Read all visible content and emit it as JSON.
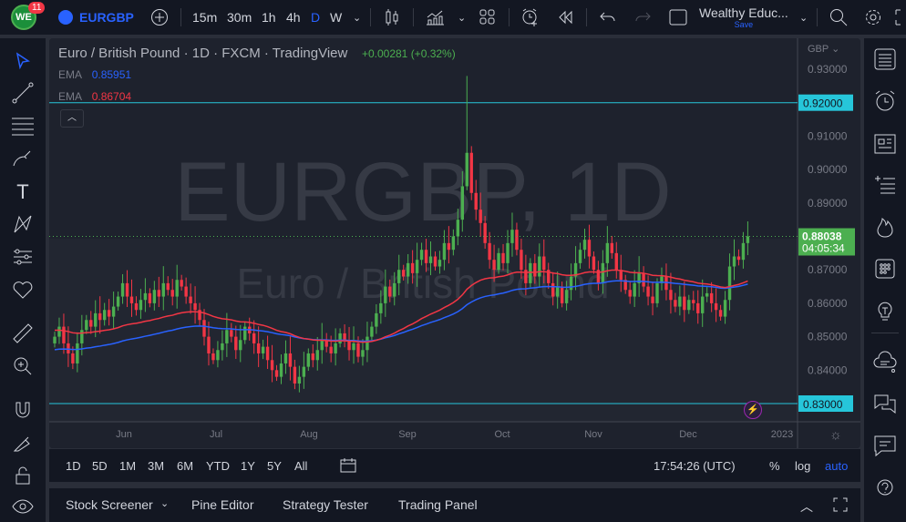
{
  "toolbar": {
    "notifications": "11",
    "symbol": "EURGBP",
    "intervals": [
      "15m",
      "30m",
      "1h",
      "4h",
      "D",
      "W"
    ],
    "active_interval": "D",
    "layout_name": "Wealthy Educ...",
    "save_label": "Save"
  },
  "legend": {
    "title": "Euro / British Pound · 1D · FXCM · TradingView",
    "change": "+0.00281 (+0.32%)",
    "ema1_label": "EMA",
    "ema1_value": "0.85951",
    "ema2_label": "EMA",
    "ema2_value": "0.86704"
  },
  "watermark": {
    "symbol": "EURGBP, 1D",
    "name": "Euro / British Pound"
  },
  "colors": {
    "up": "#4caf50",
    "down": "#f23645",
    "ema_blue": "#2962ff",
    "ema_red": "#f23645",
    "line": "#26c6da",
    "accent": "#2962ff"
  },
  "chart_data": {
    "type": "candlestick",
    "currency": "GBP",
    "y_ticks": [
      "0.93000",
      "0.91000",
      "0.90000",
      "0.89000",
      "0.87000",
      "0.86000",
      "0.85000",
      "0.84000"
    ],
    "ylim": [
      0.83,
      0.93
    ],
    "x_ticks": [
      "Jun",
      "Jul",
      "Aug",
      "Sep",
      "Oct",
      "Nov",
      "Dec",
      "2023"
    ],
    "horizontal_lines": [
      {
        "value": "0.92000"
      },
      {
        "value": "0.83000"
      }
    ],
    "last_price": "0.88038",
    "countdown": "04:05:34",
    "closes": [
      0.85,
      0.853,
      0.848,
      0.845,
      0.842,
      0.848,
      0.852,
      0.855,
      0.853,
      0.857,
      0.855,
      0.858,
      0.856,
      0.859,
      0.862,
      0.866,
      0.862,
      0.86,
      0.858,
      0.861,
      0.863,
      0.86,
      0.864,
      0.862,
      0.866,
      0.864,
      0.862,
      0.867,
      0.865,
      0.862,
      0.86,
      0.858,
      0.855,
      0.85,
      0.845,
      0.843,
      0.846,
      0.848,
      0.852,
      0.85,
      0.846,
      0.849,
      0.853,
      0.851,
      0.848,
      0.845,
      0.847,
      0.843,
      0.84,
      0.838,
      0.842,
      0.845,
      0.841,
      0.836,
      0.838,
      0.841,
      0.845,
      0.843,
      0.846,
      0.849,
      0.847,
      0.845,
      0.848,
      0.851,
      0.849,
      0.846,
      0.848,
      0.844,
      0.846,
      0.85,
      0.853,
      0.857,
      0.86,
      0.865,
      0.862,
      0.866,
      0.87,
      0.868,
      0.872,
      0.869,
      0.873,
      0.876,
      0.872,
      0.874,
      0.871,
      0.873,
      0.878,
      0.876,
      0.88,
      0.885,
      0.895,
      0.905,
      0.893,
      0.888,
      0.884,
      0.878,
      0.873,
      0.87,
      0.875,
      0.872,
      0.878,
      0.882,
      0.876,
      0.87,
      0.866,
      0.872,
      0.868,
      0.874,
      0.87,
      0.866,
      0.862,
      0.865,
      0.86,
      0.864,
      0.868,
      0.872,
      0.876,
      0.879,
      0.874,
      0.87,
      0.866,
      0.872,
      0.878,
      0.875,
      0.87,
      0.867,
      0.864,
      0.862,
      0.866,
      0.869,
      0.865,
      0.862,
      0.86,
      0.866,
      0.868,
      0.864,
      0.861,
      0.859,
      0.862,
      0.858,
      0.861,
      0.86,
      0.857,
      0.862,
      0.863,
      0.86,
      0.858,
      0.856,
      0.861,
      0.871,
      0.874,
      0.873,
      0.878,
      0.88
    ]
  },
  "timeframes": [
    "1D",
    "5D",
    "1M",
    "3M",
    "6M",
    "YTD",
    "1Y",
    "5Y",
    "All"
  ],
  "clock": "17:54:26 (UTC)",
  "scale_options": {
    "percent": "%",
    "log": "log",
    "auto": "auto"
  },
  "bottom_tabs": [
    "Stock Screener",
    "Pine Editor",
    "Strategy Tester",
    "Trading Panel"
  ]
}
